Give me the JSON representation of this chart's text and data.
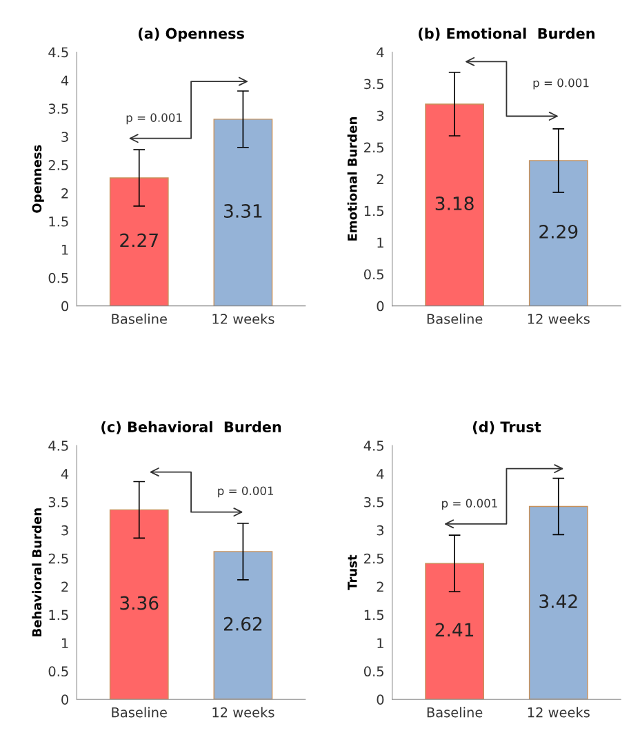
{
  "chart_data": [
    {
      "type": "bar",
      "title": "(a) Openness",
      "ylabel": "Openness",
      "categories": [
        "Baseline",
        "12 weeks"
      ],
      "values": [
        2.27,
        3.31
      ],
      "colors": [
        "#ff6666",
        "#95b3d7"
      ],
      "errors": [
        0.5,
        0.5
      ],
      "ylim": [
        0,
        4.5
      ],
      "yticks": [
        0,
        0.5,
        1,
        1.5,
        2,
        2.5,
        3,
        3.5,
        4,
        4.5
      ],
      "data_labels": true,
      "grid": false,
      "legend": false,
      "annotations": [
        "p = 0.001"
      ]
    },
    {
      "type": "bar",
      "title": "(b) Emotional  Burden",
      "ylabel": "Emotional Burden",
      "categories": [
        "Baseline",
        "12 weeks"
      ],
      "values": [
        3.18,
        2.29
      ],
      "colors": [
        "#ff6666",
        "#95b3d7"
      ],
      "errors": [
        0.5,
        0.5
      ],
      "ylim": [
        0,
        4
      ],
      "yticks": [
        0,
        0.5,
        1,
        1.5,
        2,
        2.5,
        3,
        3.5,
        4
      ],
      "data_labels": true,
      "grid": false,
      "legend": false,
      "annotations": [
        "p = 0.001"
      ]
    },
    {
      "type": "bar",
      "title": "(c) Behavioral  Burden",
      "ylabel": "Behavioral Burden",
      "categories": [
        "Baseline",
        "12 weeks"
      ],
      "values": [
        3.36,
        2.62
      ],
      "colors": [
        "#ff6666",
        "#95b3d7"
      ],
      "errors": [
        0.5,
        0.5
      ],
      "ylim": [
        0,
        4.5
      ],
      "yticks": [
        0,
        0.5,
        1,
        1.5,
        2,
        2.5,
        3,
        3.5,
        4,
        4.5
      ],
      "data_labels": true,
      "grid": false,
      "legend": false,
      "annotations": [
        "p = 0.001"
      ]
    },
    {
      "type": "bar",
      "title": "(d) Trust",
      "ylabel": "Trust",
      "categories": [
        "Baseline",
        "12 weeks"
      ],
      "values": [
        2.41,
        3.42
      ],
      "colors": [
        "#ff6666",
        "#95b3d7"
      ],
      "errors": [
        0.5,
        0.5
      ],
      "ylim": [
        0,
        4.5
      ],
      "yticks": [
        0,
        0.5,
        1,
        1.5,
        2,
        2.5,
        3,
        3.5,
        4,
        4.5
      ],
      "data_labels": true,
      "grid": false,
      "legend": false,
      "annotations": [
        "p = 0.001"
      ]
    }
  ]
}
